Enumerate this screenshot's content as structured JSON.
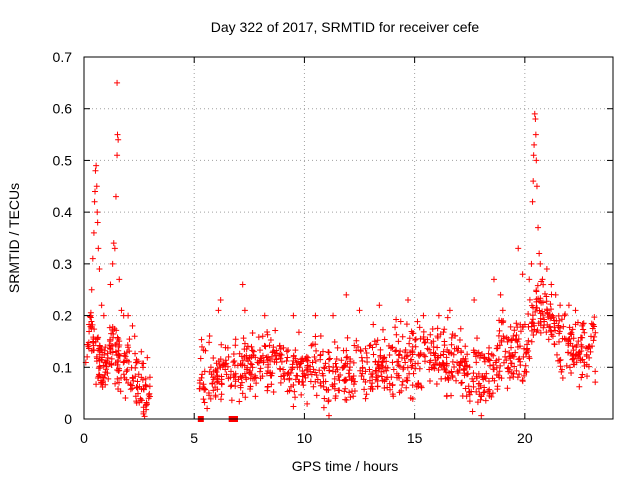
{
  "chart_data": {
    "type": "scatter",
    "title": "Day 322 of 2017, SRMTID for receiver cefe",
    "xlabel": "GPS time / hours",
    "ylabel": "SRMTID / TECUs",
    "xlim": [
      0,
      24
    ],
    "ylim": [
      0,
      0.7
    ],
    "x_ticks": [
      "0",
      "5",
      "10",
      "15",
      "20"
    ],
    "x_tick_values": [
      0,
      5,
      10,
      15,
      20
    ],
    "y_ticks": [
      "0",
      "0.1",
      "0.2",
      "0.3",
      "0.4",
      "0.5",
      "0.6",
      "0.7"
    ],
    "y_tick_values": [
      0,
      0.1,
      0.2,
      0.3,
      0.4,
      0.5,
      0.6,
      0.7
    ],
    "grid": true,
    "marker": "+",
    "color": "#ff0000",
    "series": [
      {
        "name": "SRMTID",
        "segments": [
          {
            "x_start": 0.0,
            "x_end": 3.0,
            "count": 200,
            "base": [
              [
                0,
                0.06
              ],
              [
                0.3,
                0.18
              ],
              [
                0.6,
                0.12
              ],
              [
                0.9,
                0.09
              ],
              [
                1.3,
                0.14
              ],
              [
                1.6,
                0.09
              ],
              [
                2.0,
                0.11
              ],
              [
                2.4,
                0.07
              ],
              [
                3.0,
                0.06
              ]
            ],
            "spread": 0.035
          },
          {
            "x_start": 5.2,
            "x_end": 23.2,
            "count": 1050,
            "base": [
              [
                5.2,
                0.09
              ],
              [
                6.0,
                0.08
              ],
              [
                7.0,
                0.1
              ],
              [
                9.0,
                0.11
              ],
              [
                10.5,
                0.08
              ],
              [
                12.5,
                0.1
              ],
              [
                14.5,
                0.12
              ],
              [
                16.5,
                0.12
              ],
              [
                17.5,
                0.09
              ],
              [
                18.2,
                0.06
              ],
              [
                19.0,
                0.14
              ],
              [
                20.0,
                0.12
              ],
              [
                20.5,
                0.22
              ],
              [
                21.5,
                0.17
              ],
              [
                22.5,
                0.12
              ],
              [
                23.2,
                0.14
              ]
            ],
            "spread": 0.045
          }
        ],
        "extra_points": [
          [
            0.2,
            0.14
          ],
          [
            0.3,
            0.2
          ],
          [
            0.35,
            0.25
          ],
          [
            0.4,
            0.31
          ],
          [
            0.45,
            0.36
          ],
          [
            0.48,
            0.42
          ],
          [
            0.5,
            0.44
          ],
          [
            0.52,
            0.48
          ],
          [
            0.55,
            0.49
          ],
          [
            0.58,
            0.45
          ],
          [
            0.6,
            0.4
          ],
          [
            0.62,
            0.38
          ],
          [
            0.65,
            0.33
          ],
          [
            0.7,
            0.29
          ],
          [
            0.8,
            0.22
          ],
          [
            0.9,
            0.2
          ],
          [
            1.2,
            0.26
          ],
          [
            1.3,
            0.3
          ],
          [
            1.35,
            0.34
          ],
          [
            1.4,
            0.33
          ],
          [
            1.45,
            0.43
          ],
          [
            1.5,
            0.51
          ],
          [
            1.52,
            0.55
          ],
          [
            1.55,
            0.54
          ],
          [
            1.5,
            0.65
          ],
          [
            1.6,
            0.27
          ],
          [
            1.7,
            0.21
          ],
          [
            1.8,
            0.2
          ],
          [
            2.0,
            0.2
          ],
          [
            2.2,
            0.18
          ],
          [
            2.3,
            0.16
          ],
          [
            2.6,
            0.13
          ],
          [
            2.7,
            0.01
          ],
          [
            2.75,
            0.005
          ],
          [
            6.1,
            0.21
          ],
          [
            6.2,
            0.23
          ],
          [
            7.2,
            0.26
          ],
          [
            7.3,
            0.21
          ],
          [
            8.2,
            0.2
          ],
          [
            9.5,
            0.2
          ],
          [
            10.5,
            0.2
          ],
          [
            11.3,
            0.2
          ],
          [
            11.9,
            0.24
          ],
          [
            12.5,
            0.21
          ],
          [
            13.4,
            0.22
          ],
          [
            14.7,
            0.23
          ],
          [
            15.4,
            0.2
          ],
          [
            16.1,
            0.2
          ],
          [
            16.6,
            0.21
          ],
          [
            17.7,
            0.23
          ],
          [
            18.6,
            0.27
          ],
          [
            18.9,
            0.24
          ],
          [
            19.0,
            0.21
          ],
          [
            19.7,
            0.33
          ],
          [
            19.9,
            0.28
          ],
          [
            20.2,
            0.27
          ],
          [
            20.3,
            0.3
          ],
          [
            20.35,
            0.42
          ],
          [
            20.38,
            0.46
          ],
          [
            20.4,
            0.51
          ],
          [
            20.42,
            0.53
          ],
          [
            20.45,
            0.59
          ],
          [
            20.48,
            0.58
          ],
          [
            20.5,
            0.55
          ],
          [
            20.52,
            0.5
          ],
          [
            20.55,
            0.45
          ],
          [
            20.6,
            0.37
          ],
          [
            20.65,
            0.32
          ],
          [
            20.7,
            0.3
          ],
          [
            20.8,
            0.27
          ],
          [
            21.0,
            0.29
          ],
          [
            21.2,
            0.26
          ],
          [
            21.4,
            0.24
          ],
          [
            21.6,
            0.22
          ],
          [
            21.8,
            0.2
          ],
          [
            22.0,
            0.22
          ],
          [
            22.3,
            0.21
          ],
          [
            22.6,
            0.18
          ]
        ],
        "zero_marks": [
          [
            5.3,
            0
          ],
          [
            6.7,
            0
          ],
          [
            6.8,
            0
          ],
          [
            6.85,
            0
          ]
        ]
      }
    ]
  }
}
